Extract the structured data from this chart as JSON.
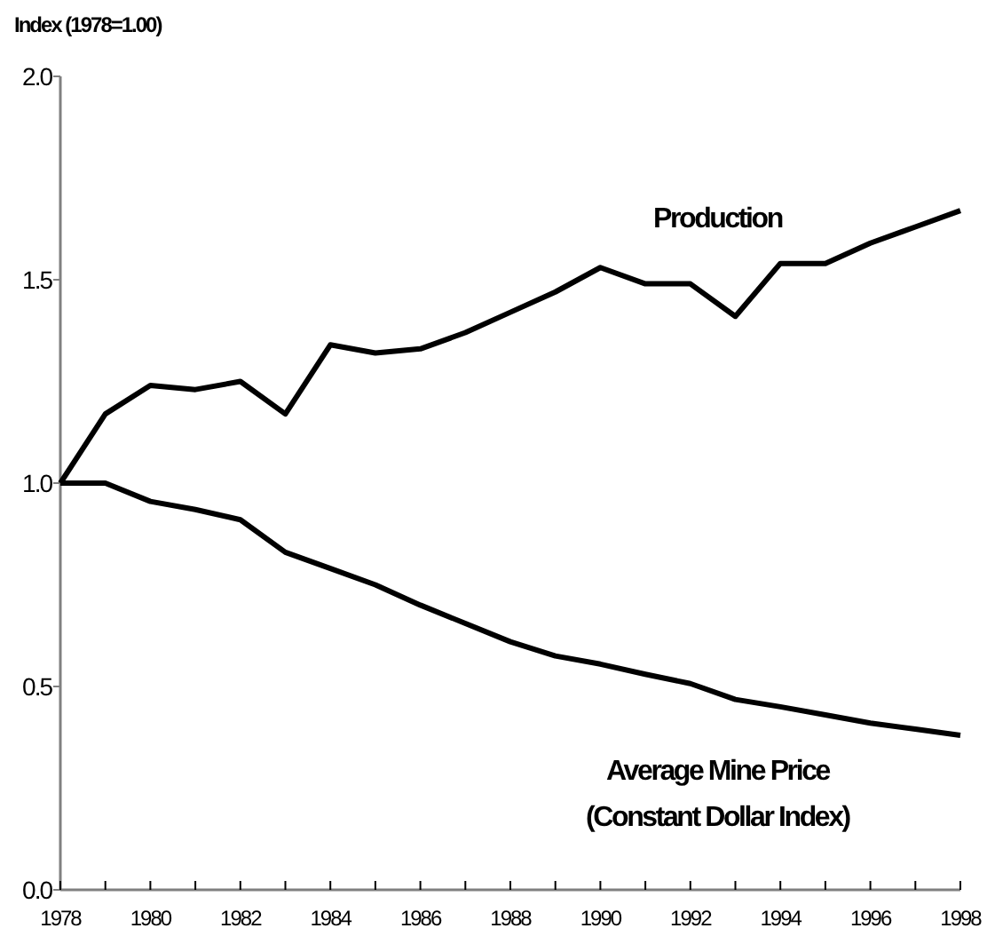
{
  "chart_data": {
    "type": "line",
    "ylabel": "Index (1978=1.00)",
    "x": [
      1978,
      1979,
      1980,
      1981,
      1982,
      1983,
      1984,
      1985,
      1986,
      1987,
      1988,
      1989,
      1990,
      1991,
      1992,
      1993,
      1994,
      1995,
      1996,
      1997,
      1998
    ],
    "series": [
      {
        "name": "Production",
        "color": "#000000",
        "values": [
          1.0,
          1.17,
          1.24,
          1.23,
          1.25,
          1.17,
          1.34,
          1.32,
          1.33,
          1.37,
          1.42,
          1.47,
          1.53,
          1.49,
          1.49,
          1.41,
          1.54,
          1.54,
          1.59,
          1.63,
          1.67
        ]
      },
      {
        "name": "Average Mine Price\n(Constant Dollar Index)",
        "color": "#000000",
        "values": [
          1.0,
          1.0,
          0.955,
          0.935,
          0.91,
          0.83,
          0.79,
          0.75,
          0.7,
          0.655,
          0.61,
          0.575,
          0.555,
          0.53,
          0.507,
          0.468,
          0.45,
          0.43,
          0.41,
          0.395,
          0.38
        ]
      }
    ],
    "xlim": [
      1978,
      1998
    ],
    "xticks": [
      1978,
      {
        "value": 1979,
        "label": null
      },
      1980,
      {
        "value": 1981,
        "label": null
      },
      1982,
      {
        "value": 1983,
        "label": null
      },
      1984,
      {
        "value": 1985,
        "label": null
      },
      1986,
      {
        "value": 1987,
        "label": null
      },
      1988,
      {
        "value": 1989,
        "label": null
      },
      1990,
      {
        "value": 1991,
        "label": null
      },
      1992,
      {
        "value": 1993,
        "label": null
      },
      1994,
      {
        "value": 1995,
        "label": null
      },
      1996,
      {
        "value": 1997,
        "label": null
      },
      1998
    ],
    "ylim": [
      0,
      2
    ],
    "yticks": [
      {
        "value": 0,
        "label": "0.0"
      },
      {
        "value": 0.5,
        "label": "0.5"
      },
      {
        "value": 1,
        "label": "1.0"
      },
      {
        "value": 1.5,
        "label": "1.5"
      },
      {
        "value": 2,
        "label": "2.0"
      }
    ],
    "marker": "none",
    "line_style": "solid",
    "grid": false
  }
}
